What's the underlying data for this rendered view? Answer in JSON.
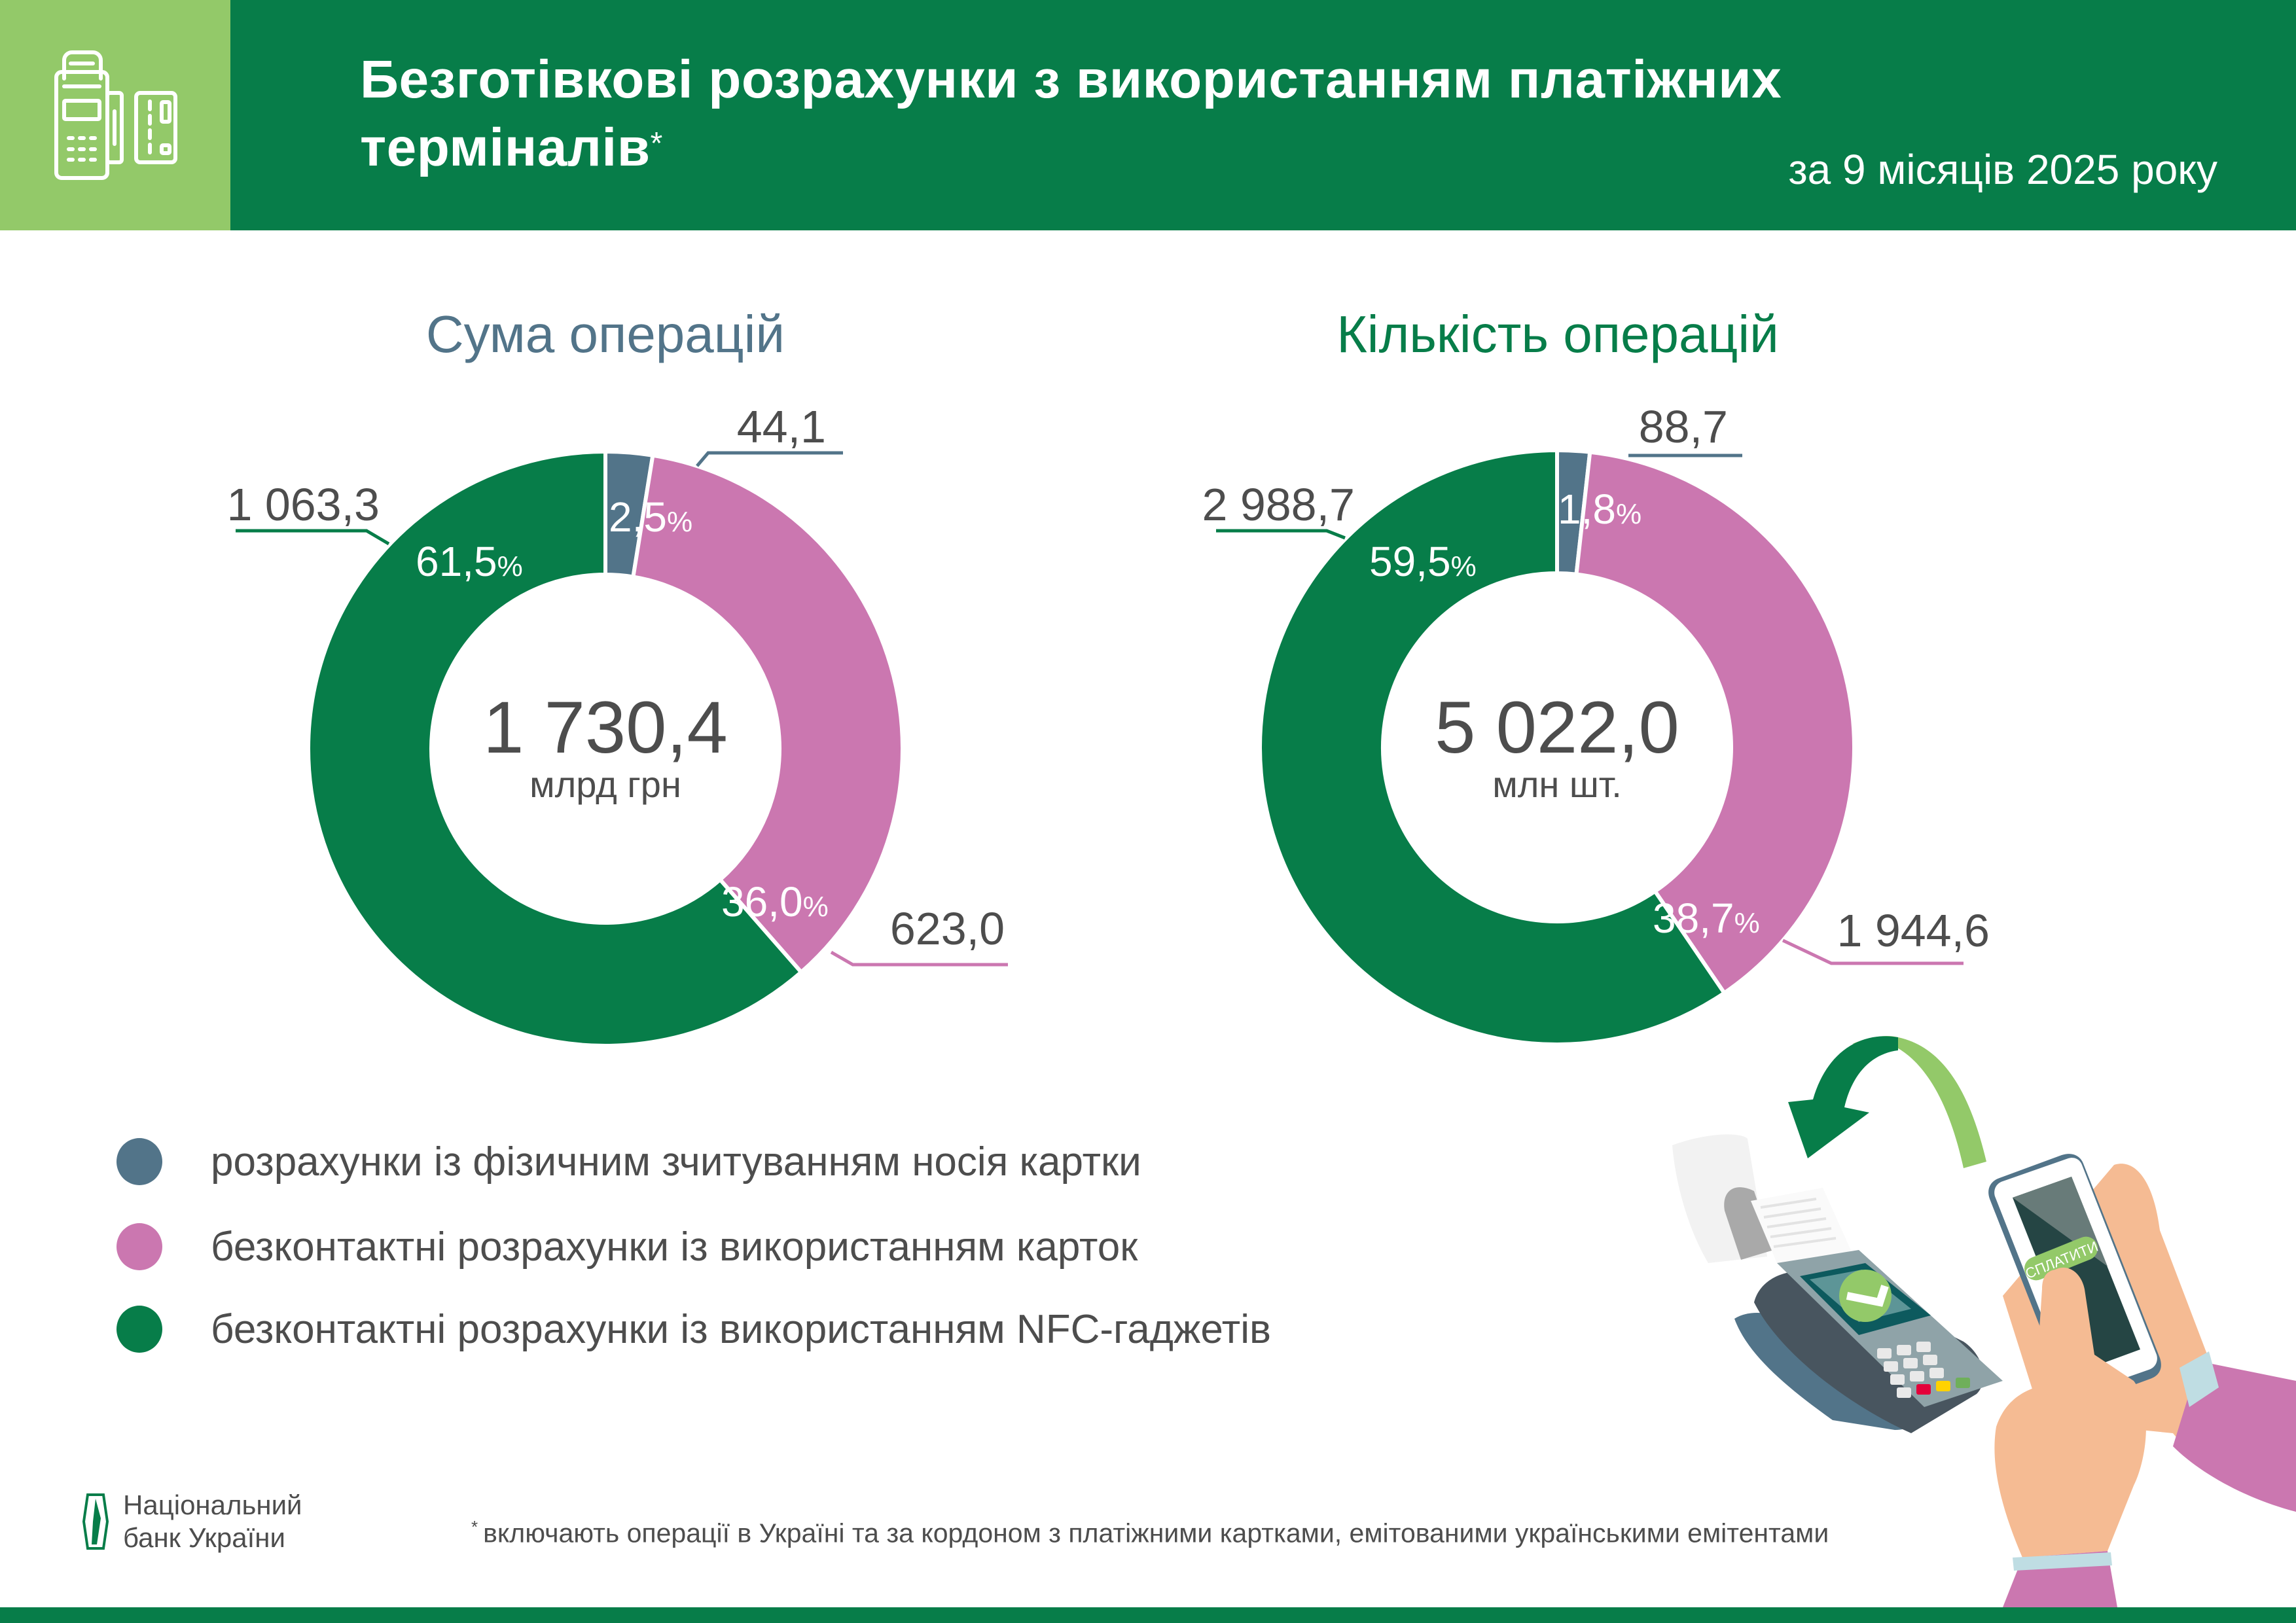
{
  "header": {
    "title_line1": "Безготівкові розрахунки з використанням платіжних",
    "title_line2": "терміналів",
    "title_footnote_mark": "*",
    "period": "за 9 місяців 2025 року",
    "icon": "pos-terminal-and-card-icon"
  },
  "colors": {
    "header_dark_green": "#077d49",
    "header_light_green": "#93c969",
    "physical": "#527489",
    "contactless_card": "#cb77b0",
    "nfc": "#077d49",
    "text_dark": "#4d4d4d"
  },
  "charts": {
    "sum": {
      "title": "Сума операцій",
      "total": "1 730,4",
      "unit": "млрд грн",
      "segments": [
        {
          "key": "physical",
          "value_label": "44,1",
          "pct_label": "2,5",
          "pct_sign": "%"
        },
        {
          "key": "contactless_card",
          "value_label": "623,0",
          "pct_label": "36,0",
          "pct_sign": "%"
        },
        {
          "key": "nfc",
          "value_label": "1 063,3",
          "pct_label": "61,5",
          "pct_sign": "%"
        }
      ]
    },
    "count": {
      "title": "Кількість операцій",
      "total": "5 022,0",
      "unit": "млн шт.",
      "segments": [
        {
          "key": "physical",
          "value_label": "88,7",
          "pct_label": "1,8",
          "pct_sign": "%"
        },
        {
          "key": "contactless_card",
          "value_label": "1 944,6",
          "pct_label": "38,7",
          "pct_sign": "%"
        },
        {
          "key": "nfc",
          "value_label": "2 988,7",
          "pct_label": "59,5",
          "pct_sign": "%"
        }
      ]
    }
  },
  "legend": {
    "items": [
      {
        "key": "physical",
        "label": "розрахунки із фізичним зчитуванням носія картки"
      },
      {
        "key": "contactless_card",
        "label": "безконтактні розрахунки із використанням карток"
      },
      {
        "key": "nfc",
        "label": "безконтактні розрахунки із використанням NFC-гаджетів"
      }
    ]
  },
  "footer": {
    "logo_line1": "Національний",
    "logo_line2": "банк України",
    "footnote_mark": "*",
    "footnote": "включають операції в Україні та за кордоном з платіжними картками, емітованими українськими емітентами"
  },
  "illustration": {
    "pay_button_label": "СПЛАТИТИ"
  },
  "chart_data": [
    {
      "type": "pie",
      "title": "Сума операцій",
      "center_total": 1730.4,
      "unit": "млрд грн",
      "categories": [
        "розрахунки із фізичним зчитуванням носія картки",
        "безконтактні розрахунки із використанням карток",
        "безконтактні розрахунки із використанням NFC-гаджетів"
      ],
      "values": [
        44.1,
        623.0,
        1063.3
      ],
      "percentages": [
        2.5,
        36.0,
        61.5
      ],
      "colors": [
        "#527489",
        "#cb77b0",
        "#077d49"
      ],
      "donut": true
    },
    {
      "type": "pie",
      "title": "Кількість операцій",
      "center_total": 5022.0,
      "unit": "млн шт.",
      "categories": [
        "розрахунки із фізичним зчитуванням носія картки",
        "безконтактні розрахунки із використанням карток",
        "безконтактні розрахунки із використанням NFC-гаджетів"
      ],
      "values": [
        88.7,
        1944.6,
        2988.7
      ],
      "percentages": [
        1.8,
        38.7,
        59.5
      ],
      "colors": [
        "#527489",
        "#cb77b0",
        "#077d49"
      ],
      "donut": true
    }
  ]
}
